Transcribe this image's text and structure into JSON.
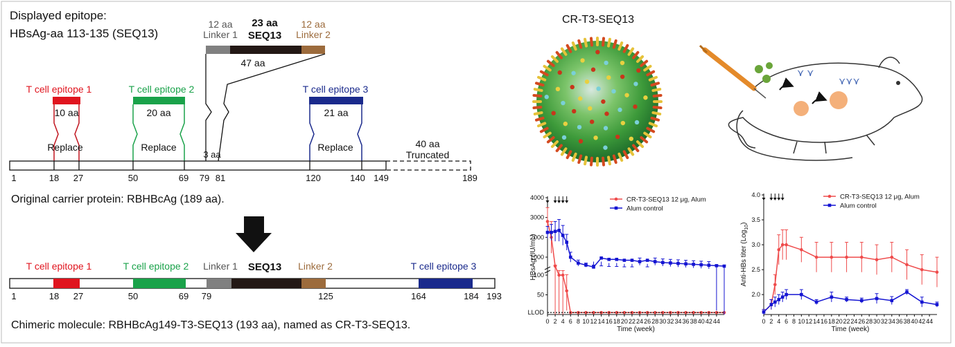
{
  "top_left": {
    "line1": "Displayed epitope:",
    "line2": "HBsAg-aa 113-135 (SEQ13)"
  },
  "insert": {
    "linker1_len": "12 aa",
    "linker1_name": "Linker 1",
    "seq_len": "23 aa",
    "seq_name": "SEQ13",
    "linker2_len": "12 aa",
    "linker2_name": "Linker 2",
    "total_len": "47 aa"
  },
  "epitopes": {
    "t1_title": "T cell epitope 1",
    "t1_len": "10 aa",
    "t2_title": "T cell epitope 2",
    "t2_len": "20 aa",
    "t3_title": "T cell epitope 3",
    "t3_len": "21 aa",
    "replace": "Replace",
    "gap": "3 aa",
    "truncated_len": "40 aa",
    "truncated": "Truncated"
  },
  "original": {
    "ticks": [
      "1",
      "18",
      "27",
      "50",
      "69",
      "79",
      "81",
      "120",
      "140",
      "149",
      "189"
    ],
    "caption": "Original carrier protein:  RBHBcAg (189 aa)."
  },
  "chimeric": {
    "t1": "T cell epitope 1",
    "t2": "T cell epitope 2",
    "linker1": "Linker 1",
    "seq": "SEQ13",
    "linker2": "Linker 2",
    "t3": "T cell epitope 3",
    "ticks": [
      "1",
      "18",
      "27",
      "50",
      "69",
      "79",
      "125",
      "164",
      "184",
      "193"
    ],
    "caption": "Chimeric molecule:  RBHBcAg149-T3-SEQ13 (193 aa), named as CR-T3-SEQ13."
  },
  "particle_title": "CR-T3-SEQ13",
  "colors": {
    "t1": "#e0141e",
    "t2": "#1aa24a",
    "t3": "#1a2a8c",
    "linker1": "#808080",
    "seq": "#231815",
    "linker2": "#9c6b3c",
    "series_vaccine": "#ef4b4b",
    "series_control": "#1414d2"
  },
  "chart_data": [
    {
      "type": "line",
      "xlabel": "Time (week)",
      "ylabel": "HBsAg (IU/mL)",
      "y_axis": "broken",
      "xlim": [
        0,
        46
      ],
      "x_ticks": [
        "0",
        "2",
        "4",
        "6",
        "8",
        "10",
        "12",
        "14",
        "16",
        "18",
        "20",
        "22",
        "24",
        "26",
        "28",
        "30",
        "32",
        "34",
        "36",
        "38",
        "40",
        "42",
        "44"
      ],
      "y_ticks_upper": [
        "4000",
        "3000",
        "2000",
        "1000"
      ],
      "y_ticks_lower": [
        "100",
        "50"
      ],
      "lower_limit_label": "LLOD",
      "lower_limit_value": 5,
      "dose_weeks": [
        0,
        2,
        3,
        4,
        5
      ],
      "legend": [
        "CR-T3-SEQ13 12 μg, Alum",
        "Alum control"
      ],
      "series": [
        {
          "name": "CR-T3-SEQ13 12 μg, Alum",
          "x": [
            0,
            1,
            2,
            3,
            4,
            5,
            6,
            8,
            10,
            12,
            14,
            16,
            18,
            20,
            22,
            24,
            26,
            28,
            30,
            32,
            34,
            36,
            38,
            40,
            42,
            44,
            46
          ],
          "y": [
            2800,
            2000,
            300,
            100,
            100,
            60,
            5,
            5,
            5,
            5,
            5,
            5,
            5,
            5,
            5,
            5,
            5,
            5,
            5,
            5,
            5,
            5,
            5,
            5,
            5,
            5,
            5
          ],
          "err": [
            700,
            800,
            300,
            100,
            100,
            50,
            0,
            0,
            0,
            0,
            0,
            0,
            0,
            0,
            0,
            0,
            0,
            0,
            0,
            0,
            0,
            0,
            0,
            0,
            0,
            0,
            0
          ]
        },
        {
          "name": "Alum control",
          "x": [
            0,
            1,
            2,
            3,
            4,
            5,
            6,
            8,
            10,
            12,
            14,
            16,
            18,
            20,
            22,
            24,
            26,
            28,
            30,
            32,
            34,
            36,
            38,
            40,
            42,
            44,
            46
          ],
          "y": [
            2250,
            2250,
            2300,
            2350,
            2100,
            1750,
            1000,
            700,
            600,
            500,
            480,
            450,
            450,
            430,
            430,
            400,
            430,
            400,
            380,
            370,
            360,
            350,
            340,
            330,
            320,
            310,
            300
          ],
          "err": [
            300,
            400,
            500,
            550,
            500,
            400,
            250,
            150,
            100,
            100,
            80,
            80,
            80,
            80,
            80,
            80,
            80,
            80,
            80,
            80,
            80,
            80,
            80,
            80,
            80,
            300,
            300
          ]
        }
      ]
    },
    {
      "type": "line",
      "xlabel": "Time (week)",
      "ylabel": "Anti-HBs titer (Log",
      "ylabel_sub": "10",
      "xlim": [
        0,
        46
      ],
      "ylim": [
        1.6,
        4.0
      ],
      "x_ticks": [
        "0",
        "2",
        "4",
        "6",
        "8",
        "10",
        "12",
        "14",
        "16",
        "18",
        "20",
        "22",
        "24",
        "26",
        "28",
        "30",
        "32",
        "34",
        "36",
        "38",
        "40",
        "42",
        "44"
      ],
      "y_ticks": [
        "4.0",
        "3.5",
        "3.0",
        "2.5",
        "2.0"
      ],
      "dose_weeks": [
        0,
        2,
        3,
        4,
        5
      ],
      "legend": [
        "CR-T3-SEQ13 12 μg, Alum",
        "Alum control"
      ],
      "series": [
        {
          "name": "CR-T3-SEQ13 12 μg, Alum",
          "x": [
            0,
            2,
            3,
            4,
            5,
            6,
            10,
            14,
            18,
            22,
            26,
            30,
            34,
            38,
            42,
            46
          ],
          "y": [
            1.65,
            1.8,
            2.2,
            2.9,
            3.0,
            3.0,
            2.9,
            2.75,
            2.75,
            2.75,
            2.75,
            2.7,
            2.75,
            2.6,
            2.5,
            2.45
          ],
          "err": [
            0.05,
            0.1,
            0.2,
            0.3,
            0.3,
            0.3,
            0.25,
            0.3,
            0.3,
            0.3,
            0.3,
            0.3,
            0.3,
            0.3,
            0.3,
            0.3
          ]
        },
        {
          "name": "Alum control",
          "x": [
            0,
            2,
            3,
            4,
            5,
            6,
            10,
            14,
            18,
            22,
            26,
            30,
            34,
            38,
            42,
            46
          ],
          "y": [
            1.65,
            1.8,
            1.85,
            1.9,
            1.95,
            2.0,
            2.0,
            1.85,
            1.95,
            1.9,
            1.88,
            1.92,
            1.88,
            2.05,
            1.85,
            1.8
          ],
          "err": [
            0.05,
            0.1,
            0.1,
            0.1,
            0.1,
            0.1,
            0.1,
            0.05,
            0.1,
            0.05,
            0.05,
            0.1,
            0.08,
            0.05,
            0.1,
            0.05
          ]
        }
      ]
    }
  ]
}
